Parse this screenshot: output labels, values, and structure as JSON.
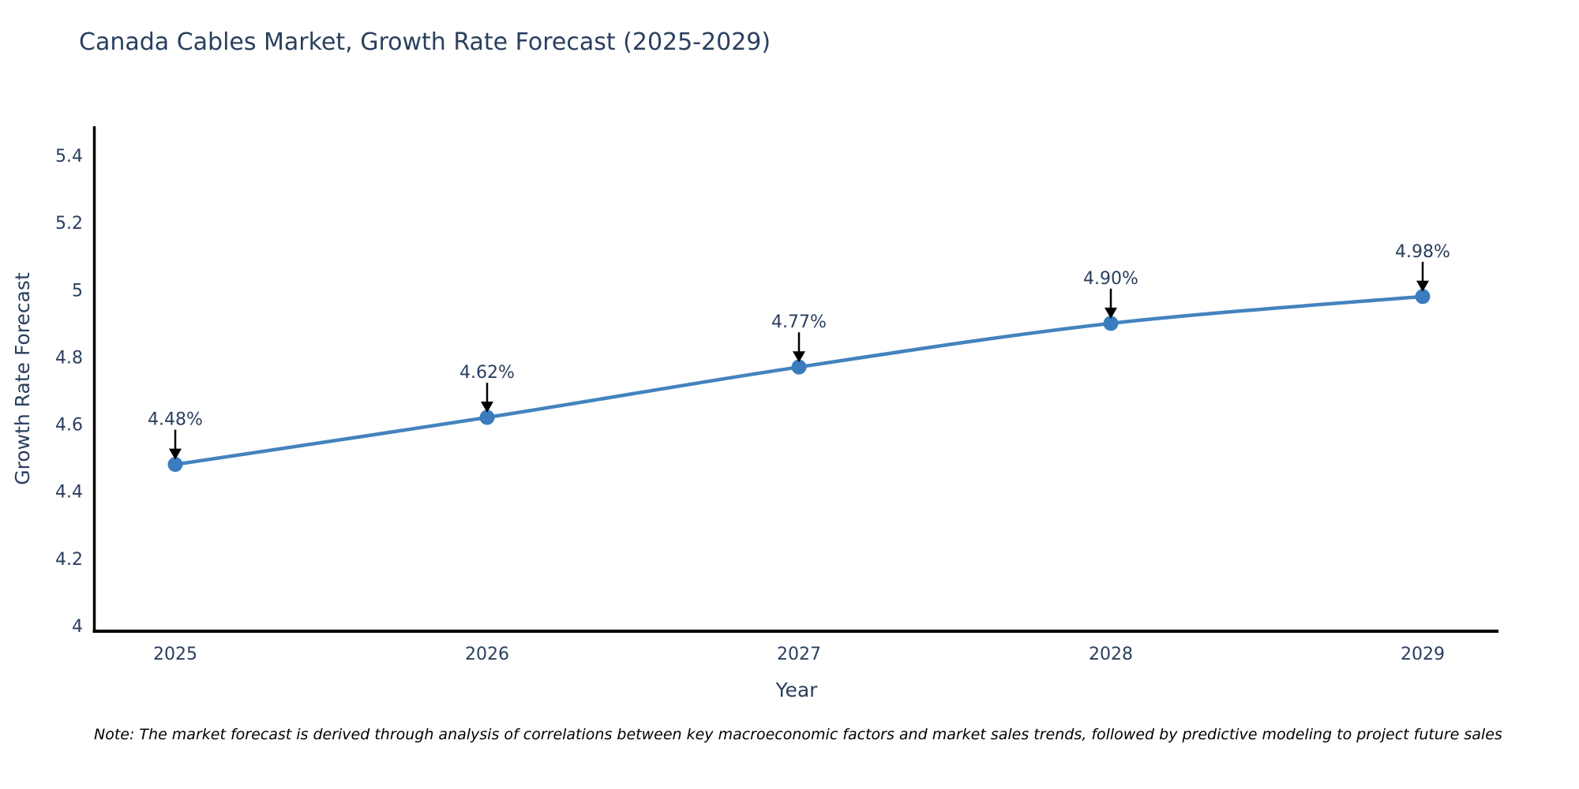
{
  "title": "Canada Cables Market, Growth Rate Forecast (2025-2029)",
  "note": "Note: The market forecast is derived through analysis of correlations between key macroeconomic factors and market sales trends, followed by predictive modeling to project future sales",
  "chart_data": {
    "type": "line",
    "title": "Canada Cables Market, Growth Rate Forecast (2025-2029)",
    "xlabel": "Year",
    "ylabel": "Growth Rate Forecast",
    "x": [
      2025,
      2026,
      2027,
      2028,
      2029
    ],
    "x_tick_labels": [
      "2025",
      "2026",
      "2027",
      "2028",
      "2029"
    ],
    "series": [
      {
        "name": "Growth Rate Forecast",
        "values": [
          4.48,
          4.62,
          4.77,
          4.9,
          4.98
        ],
        "point_labels": [
          "4.48%",
          "4.62%",
          "4.77%",
          "4.90%",
          "4.98%"
        ]
      }
    ],
    "ylim": [
      4,
      5.4
    ],
    "yticks": [
      4,
      4.2,
      4.4,
      4.6,
      4.8,
      5,
      5.2,
      5.4
    ],
    "ytick_labels": [
      "4",
      "4.2",
      "4.4",
      "4.6",
      "4.8",
      "5",
      "5.2",
      "5.4"
    ],
    "grid": false,
    "legend": false,
    "line_shape": "spline",
    "annotations_have_arrows": true,
    "colors": {
      "line": "#4383be",
      "marker": "#3a7cbd",
      "text": "#2a3f5f",
      "axis": "#000000",
      "arrow": "#000000",
      "background": "#ffffff"
    }
  }
}
